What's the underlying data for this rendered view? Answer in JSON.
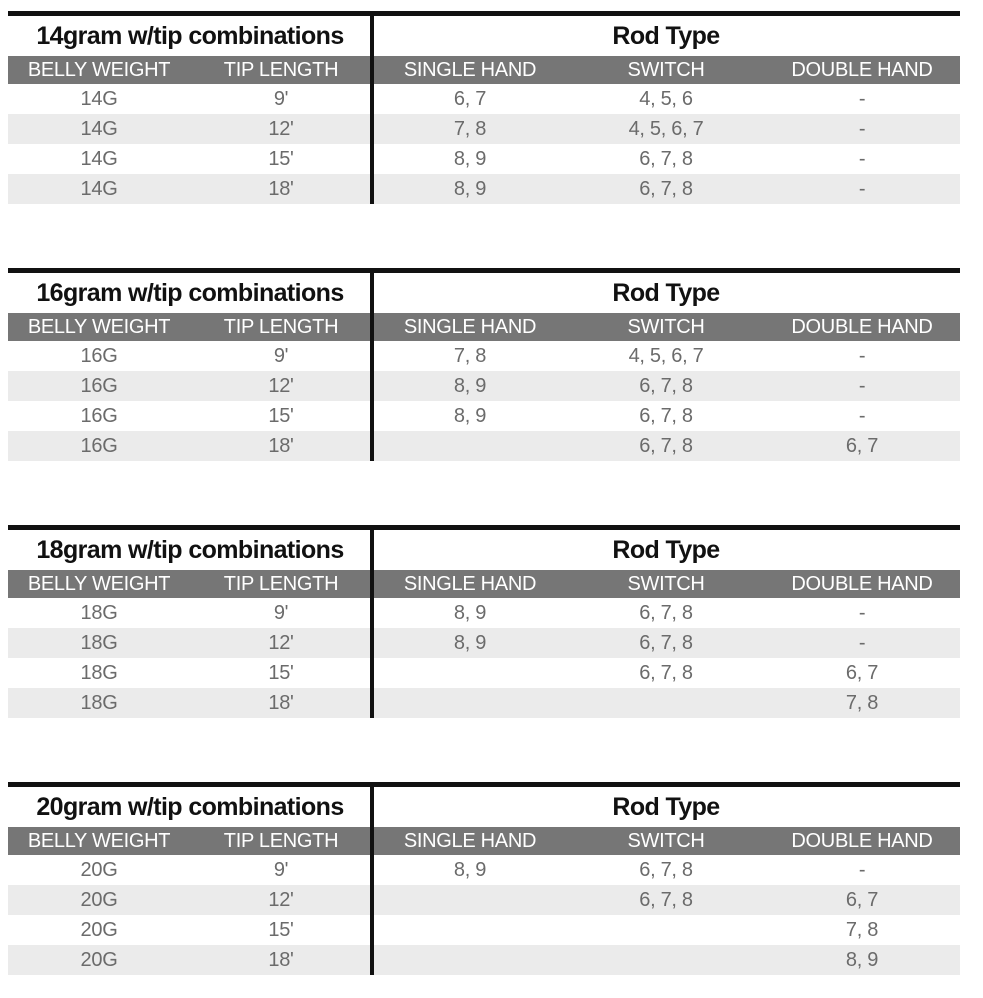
{
  "page": {
    "background": "#ffffff"
  },
  "colors": {
    "top_border": "#111111",
    "divider_line": "#111111",
    "header_band": "#767676",
    "header_text": "#ffffff",
    "row_alt_background": "#ebebeb",
    "data_text": "#6b6b6b",
    "title_text": "#111111"
  },
  "rod_type_label": "Rod Type",
  "columns": [
    "BELLY WEIGHT",
    "TIP LENGTH",
    "SINGLE HAND",
    "SWITCH",
    "DOUBLE HAND"
  ],
  "column_keys": [
    "belly_weight",
    "tip_length",
    "single_hand",
    "switch",
    "double_hand"
  ],
  "tables": [
    {
      "title": "14gram w/tip combinations",
      "rows": [
        {
          "belly_weight": "14G",
          "tip_length": "9'",
          "single_hand": "6, 7",
          "switch": "4, 5, 6",
          "double_hand": "-"
        },
        {
          "belly_weight": "14G",
          "tip_length": "12'",
          "single_hand": "7, 8",
          "switch": "4, 5, 6, 7",
          "double_hand": "-"
        },
        {
          "belly_weight": "14G",
          "tip_length": "15'",
          "single_hand": "8, 9",
          "switch": "6, 7, 8",
          "double_hand": "-"
        },
        {
          "belly_weight": "14G",
          "tip_length": "18'",
          "single_hand": "8, 9",
          "switch": "6, 7, 8",
          "double_hand": "-"
        }
      ]
    },
    {
      "title": "16gram w/tip combinations",
      "rows": [
        {
          "belly_weight": "16G",
          "tip_length": "9'",
          "single_hand": "7, 8",
          "switch": "4, 5, 6, 7",
          "double_hand": "-"
        },
        {
          "belly_weight": "16G",
          "tip_length": "12'",
          "single_hand": "8, 9",
          "switch": "6, 7, 8",
          "double_hand": "-"
        },
        {
          "belly_weight": "16G",
          "tip_length": "15'",
          "single_hand": "8, 9",
          "switch": "6, 7, 8",
          "double_hand": "-"
        },
        {
          "belly_weight": "16G",
          "tip_length": "18'",
          "single_hand": "",
          "switch": "6, 7, 8",
          "double_hand": "6, 7"
        }
      ]
    },
    {
      "title": "18gram w/tip combinations",
      "rows": [
        {
          "belly_weight": "18G",
          "tip_length": "9'",
          "single_hand": "8, 9",
          "switch": "6, 7, 8",
          "double_hand": "-"
        },
        {
          "belly_weight": "18G",
          "tip_length": "12'",
          "single_hand": "8, 9",
          "switch": "6, 7, 8",
          "double_hand": "-"
        },
        {
          "belly_weight": "18G",
          "tip_length": "15'",
          "single_hand": "",
          "switch": "6, 7, 8",
          "double_hand": "6, 7"
        },
        {
          "belly_weight": "18G",
          "tip_length": "18'",
          "single_hand": "",
          "switch": "",
          "double_hand": "7, 8"
        }
      ]
    },
    {
      "title": "20gram w/tip combinations",
      "rows": [
        {
          "belly_weight": "20G",
          "tip_length": "9'",
          "single_hand": "8, 9",
          "switch": "6, 7, 8",
          "double_hand": "-"
        },
        {
          "belly_weight": "20G",
          "tip_length": "12'",
          "single_hand": "",
          "switch": "6, 7, 8",
          "double_hand": "6, 7"
        },
        {
          "belly_weight": "20G",
          "tip_length": "15'",
          "single_hand": "",
          "switch": "",
          "double_hand": "7, 8"
        },
        {
          "belly_weight": "20G",
          "tip_length": "18'",
          "single_hand": "",
          "switch": "",
          "double_hand": "8, 9"
        }
      ]
    }
  ]
}
